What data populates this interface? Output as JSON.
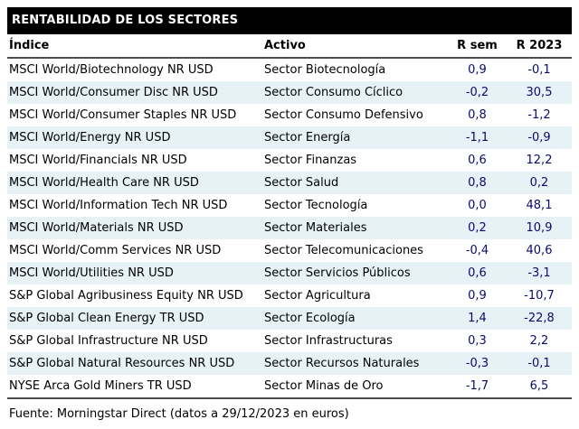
{
  "title": "RENTABILIDAD DE LOS SECTORES",
  "columns": [
    "Índice",
    "Activo",
    "R sem",
    "R 2023"
  ],
  "rows": [
    [
      "MSCI World/Biotechnology NR USD",
      "Sector Biotecnología",
      "0,9",
      "-0,1"
    ],
    [
      "MSCI World/Consumer Disc NR USD",
      "Sector Consumo Cíclico",
      "-0,2",
      "30,5"
    ],
    [
      "MSCI World/Consumer Staples NR USD",
      "Sector Consumo Defensivo",
      "0,8",
      "-1,2"
    ],
    [
      "MSCI World/Energy NR USD",
      "Sector Energía",
      "-1,1",
      "-0,9"
    ],
    [
      "MSCI World/Financials NR USD",
      "Sector Finanzas",
      "0,6",
      "12,2"
    ],
    [
      "MSCI World/Health Care NR USD",
      "Sector Salud",
      "0,8",
      "0,2"
    ],
    [
      "MSCI World/Information Tech NR USD",
      "Sector Tecnología",
      "0,0",
      "48,1"
    ],
    [
      "MSCI World/Materials NR USD",
      "Sector Materiales",
      "0,2",
      "10,9"
    ],
    [
      "MSCI World/Comm Services NR USD",
      "Sector Telecomunicaciones",
      "-0,4",
      "40,6"
    ],
    [
      "MSCI World/Utilities NR USD",
      "Sector Servicios Públicos",
      "0,6",
      "-3,1"
    ],
    [
      "S&P Global Agribusiness Equity NR USD",
      "Sector Agricultura",
      "0,9",
      "-10,7"
    ],
    [
      "S&P Global Clean Energy TR USD",
      "Sector Ecología",
      "1,4",
      "-22,8"
    ],
    [
      "S&P Global Infrastructure NR USD",
      "Sector Infrastructuras",
      "0,3",
      "2,2"
    ],
    [
      "S&P Global Natural Resources NR USD",
      "Sector Recursos Naturales",
      "-0,3",
      "-0,1"
    ],
    [
      "NYSE Arca Gold Miners TR USD",
      "Sector Minas de Oro",
      "-1,7",
      "6,5"
    ]
  ],
  "footer": "Fuente: Morningstar Direct (datos a 29/12/2023 en euros)",
  "colors": {
    "title_bg": "#000000",
    "title_text": "#ffffff",
    "stripe": "#e6f2f6",
    "number_text": "#0a0a6e",
    "rule": "#4d4d4d"
  }
}
